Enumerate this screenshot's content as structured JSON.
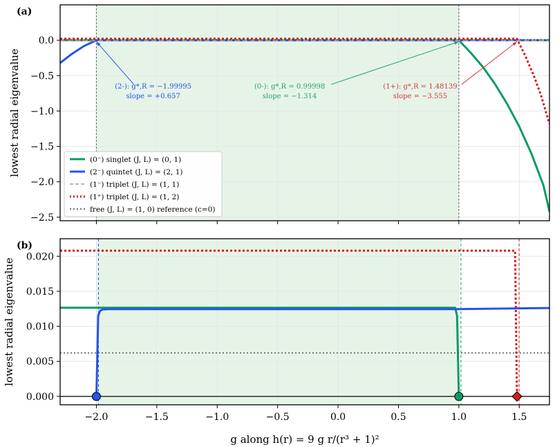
{
  "chart_data": [
    {
      "panel": "(a)",
      "type": "line",
      "xlabel": "",
      "ylabel": "lowest radial eigenvalue",
      "xlim": [
        -2.3,
        1.75
      ],
      "ylim": [
        -2.55,
        0.5
      ],
      "yticks": [
        "0.0",
        "−0.5",
        "−1.0",
        "−1.5",
        "−2.0",
        "−2.5"
      ],
      "ytick_values": [
        0.0,
        -0.5,
        -1.0,
        -1.5,
        -2.0,
        -2.5
      ],
      "shaded_region": [
        -1.99995,
        0.99998
      ],
      "vlines": [
        -1.99995,
        0.99998
      ],
      "series": [
        {
          "name": "(0⁻) singlet (J, L) = (0, 1)",
          "color": "#0f9b63",
          "style": "solid",
          "x": [
            -2.3,
            0.99998,
            1.1,
            1.2,
            1.3,
            1.4,
            1.5,
            1.6,
            1.7,
            1.75
          ],
          "y": [
            0.0,
            0.0,
            -0.18,
            -0.38,
            -0.62,
            -0.9,
            -1.22,
            -1.6,
            -2.05,
            -2.42
          ]
        },
        {
          "name": "(2⁻) quintet (J, L) = (2, 1)",
          "color": "#2554e8",
          "style": "solid",
          "x": [
            -2.3,
            -2.2,
            -2.1,
            -1.99995,
            1.75
          ],
          "y": [
            -0.32,
            -0.19,
            -0.08,
            0.0,
            0.0
          ]
        },
        {
          "name": "(1⁻) triplet (J, L) = (1, 1)",
          "color": "#a0a0a0",
          "style": "dashed",
          "x": [
            -2.3,
            1.75
          ],
          "y": [
            0.0,
            0.0
          ]
        },
        {
          "name": "(1⁺) triplet (J, L) = (1, 2)",
          "color": "#d61a1a",
          "style": "dotted",
          "x": [
            -2.3,
            1.48139,
            1.55,
            1.62,
            1.68,
            1.75
          ],
          "y": [
            0.021,
            0.021,
            -0.22,
            -0.5,
            -0.78,
            -1.18
          ]
        },
        {
          "name": "free (J, L) = (1, 0) reference (c=0)",
          "color": "#444444",
          "style": "dotted",
          "x": [
            -2.3,
            1.75
          ],
          "y": [
            0.0062,
            0.0062
          ]
        }
      ],
      "annotations": [
        {
          "label": "(2-):",
          "g_text": "g*,R = −1.99995",
          "slope_text": "slope = +0.657",
          "color": "#2554e8",
          "target": [
            -1.99995,
            0.0
          ],
          "text_at": [
            -1.53,
            -0.78
          ]
        },
        {
          "label": "(0-):",
          "g_text": "g*,R = 0.99998",
          "slope_text": "slope = −1.314",
          "color": "#2aa06a",
          "target": [
            0.99998,
            0.0
          ],
          "text_at": [
            -0.4,
            -0.78
          ]
        },
        {
          "label": "(1+):",
          "g_text": "g*,R = 1.48139",
          "slope_text": "slope = −3.555",
          "color": "#d63a3a",
          "target": [
            1.48139,
            0.0
          ],
          "text_at": [
            0.68,
            -0.78
          ]
        }
      ],
      "legend": {
        "location": "lower-left"
      }
    },
    {
      "panel": "(b)",
      "type": "line",
      "xlabel": "g along h(r) = 9 g r/(r³ + 1)²",
      "ylabel": "lowest radial eigenvalue",
      "xlim": [
        -2.3,
        1.75
      ],
      "ylim": [
        -0.0012,
        0.0225
      ],
      "xticks": [
        "−2.0",
        "−1.5",
        "−1.0",
        "−0.5",
        "0.0",
        "0.5",
        "1.0",
        "1.5"
      ],
      "xtick_values": [
        -2.0,
        -1.5,
        -1.0,
        -0.5,
        0.0,
        0.5,
        1.0,
        1.5
      ],
      "yticks": [
        "0.000",
        "0.005",
        "0.010",
        "0.015",
        "0.020"
      ],
      "ytick_values": [
        0.0,
        0.005,
        0.01,
        0.015,
        0.02
      ],
      "shaded_region": [
        -1.99995,
        0.99998
      ],
      "series": [
        {
          "name": "(0⁻) singlet",
          "color": "#0f9b63",
          "style": "solid",
          "x": [
            -2.3,
            0.97,
            0.985,
            0.99998
          ],
          "y": [
            0.01265,
            0.01265,
            0.0115,
            0.0
          ]
        },
        {
          "name": "(2⁻) quintet",
          "color": "#2554e8",
          "style": "solid",
          "x": [
            -1.99995,
            -1.985,
            -1.97,
            -1.95,
            -1.9,
            0.98,
            1.75
          ],
          "y": [
            0.0,
            0.0115,
            0.0122,
            0.0124,
            0.01245,
            0.01245,
            0.01262
          ]
        },
        {
          "name": "(1⁺) triplet",
          "color": "#d61a1a",
          "style": "dotted",
          "x": [
            -2.3,
            1.465,
            1.48139
          ],
          "y": [
            0.0208,
            0.0208,
            0.0
          ]
        },
        {
          "name": "free reference",
          "color": "#444444",
          "style": "dotted",
          "x": [
            -2.3,
            1.75
          ],
          "y": [
            0.0062,
            0.0062
          ]
        }
      ],
      "markers": [
        {
          "x": -1.99995,
          "y": 0.0,
          "shape": "circle",
          "color": "#2554e8"
        },
        {
          "x": 0.99998,
          "y": 0.0,
          "shape": "circle",
          "color": "#0f9b63"
        },
        {
          "x": 1.48139,
          "y": 0.0,
          "shape": "diamond",
          "color": "#d61a1a"
        }
      ]
    }
  ],
  "legend_items": [
    {
      "text": "(0⁻) singlet (J, L) = (0, 1)",
      "color": "#0f9b63",
      "style": "solid"
    },
    {
      "text": "(2⁻) quintet (J, L) = (2, 1)",
      "color": "#2554e8",
      "style": "solid"
    },
    {
      "text": "(1⁻) triplet (J, L) = (1, 1)",
      "color": "#a0a0a0",
      "style": "dashed"
    },
    {
      "text": "(1⁺) triplet (J, L) = (1, 2)",
      "color": "#d61a1a",
      "style": "dotted"
    },
    {
      "text": "free (J, L) = (1, 0) reference (c=0)",
      "color": "#444444",
      "style": "dotted"
    }
  ],
  "colors": {
    "shade": "#e6f4e8",
    "grid": "#e6e6e6"
  }
}
